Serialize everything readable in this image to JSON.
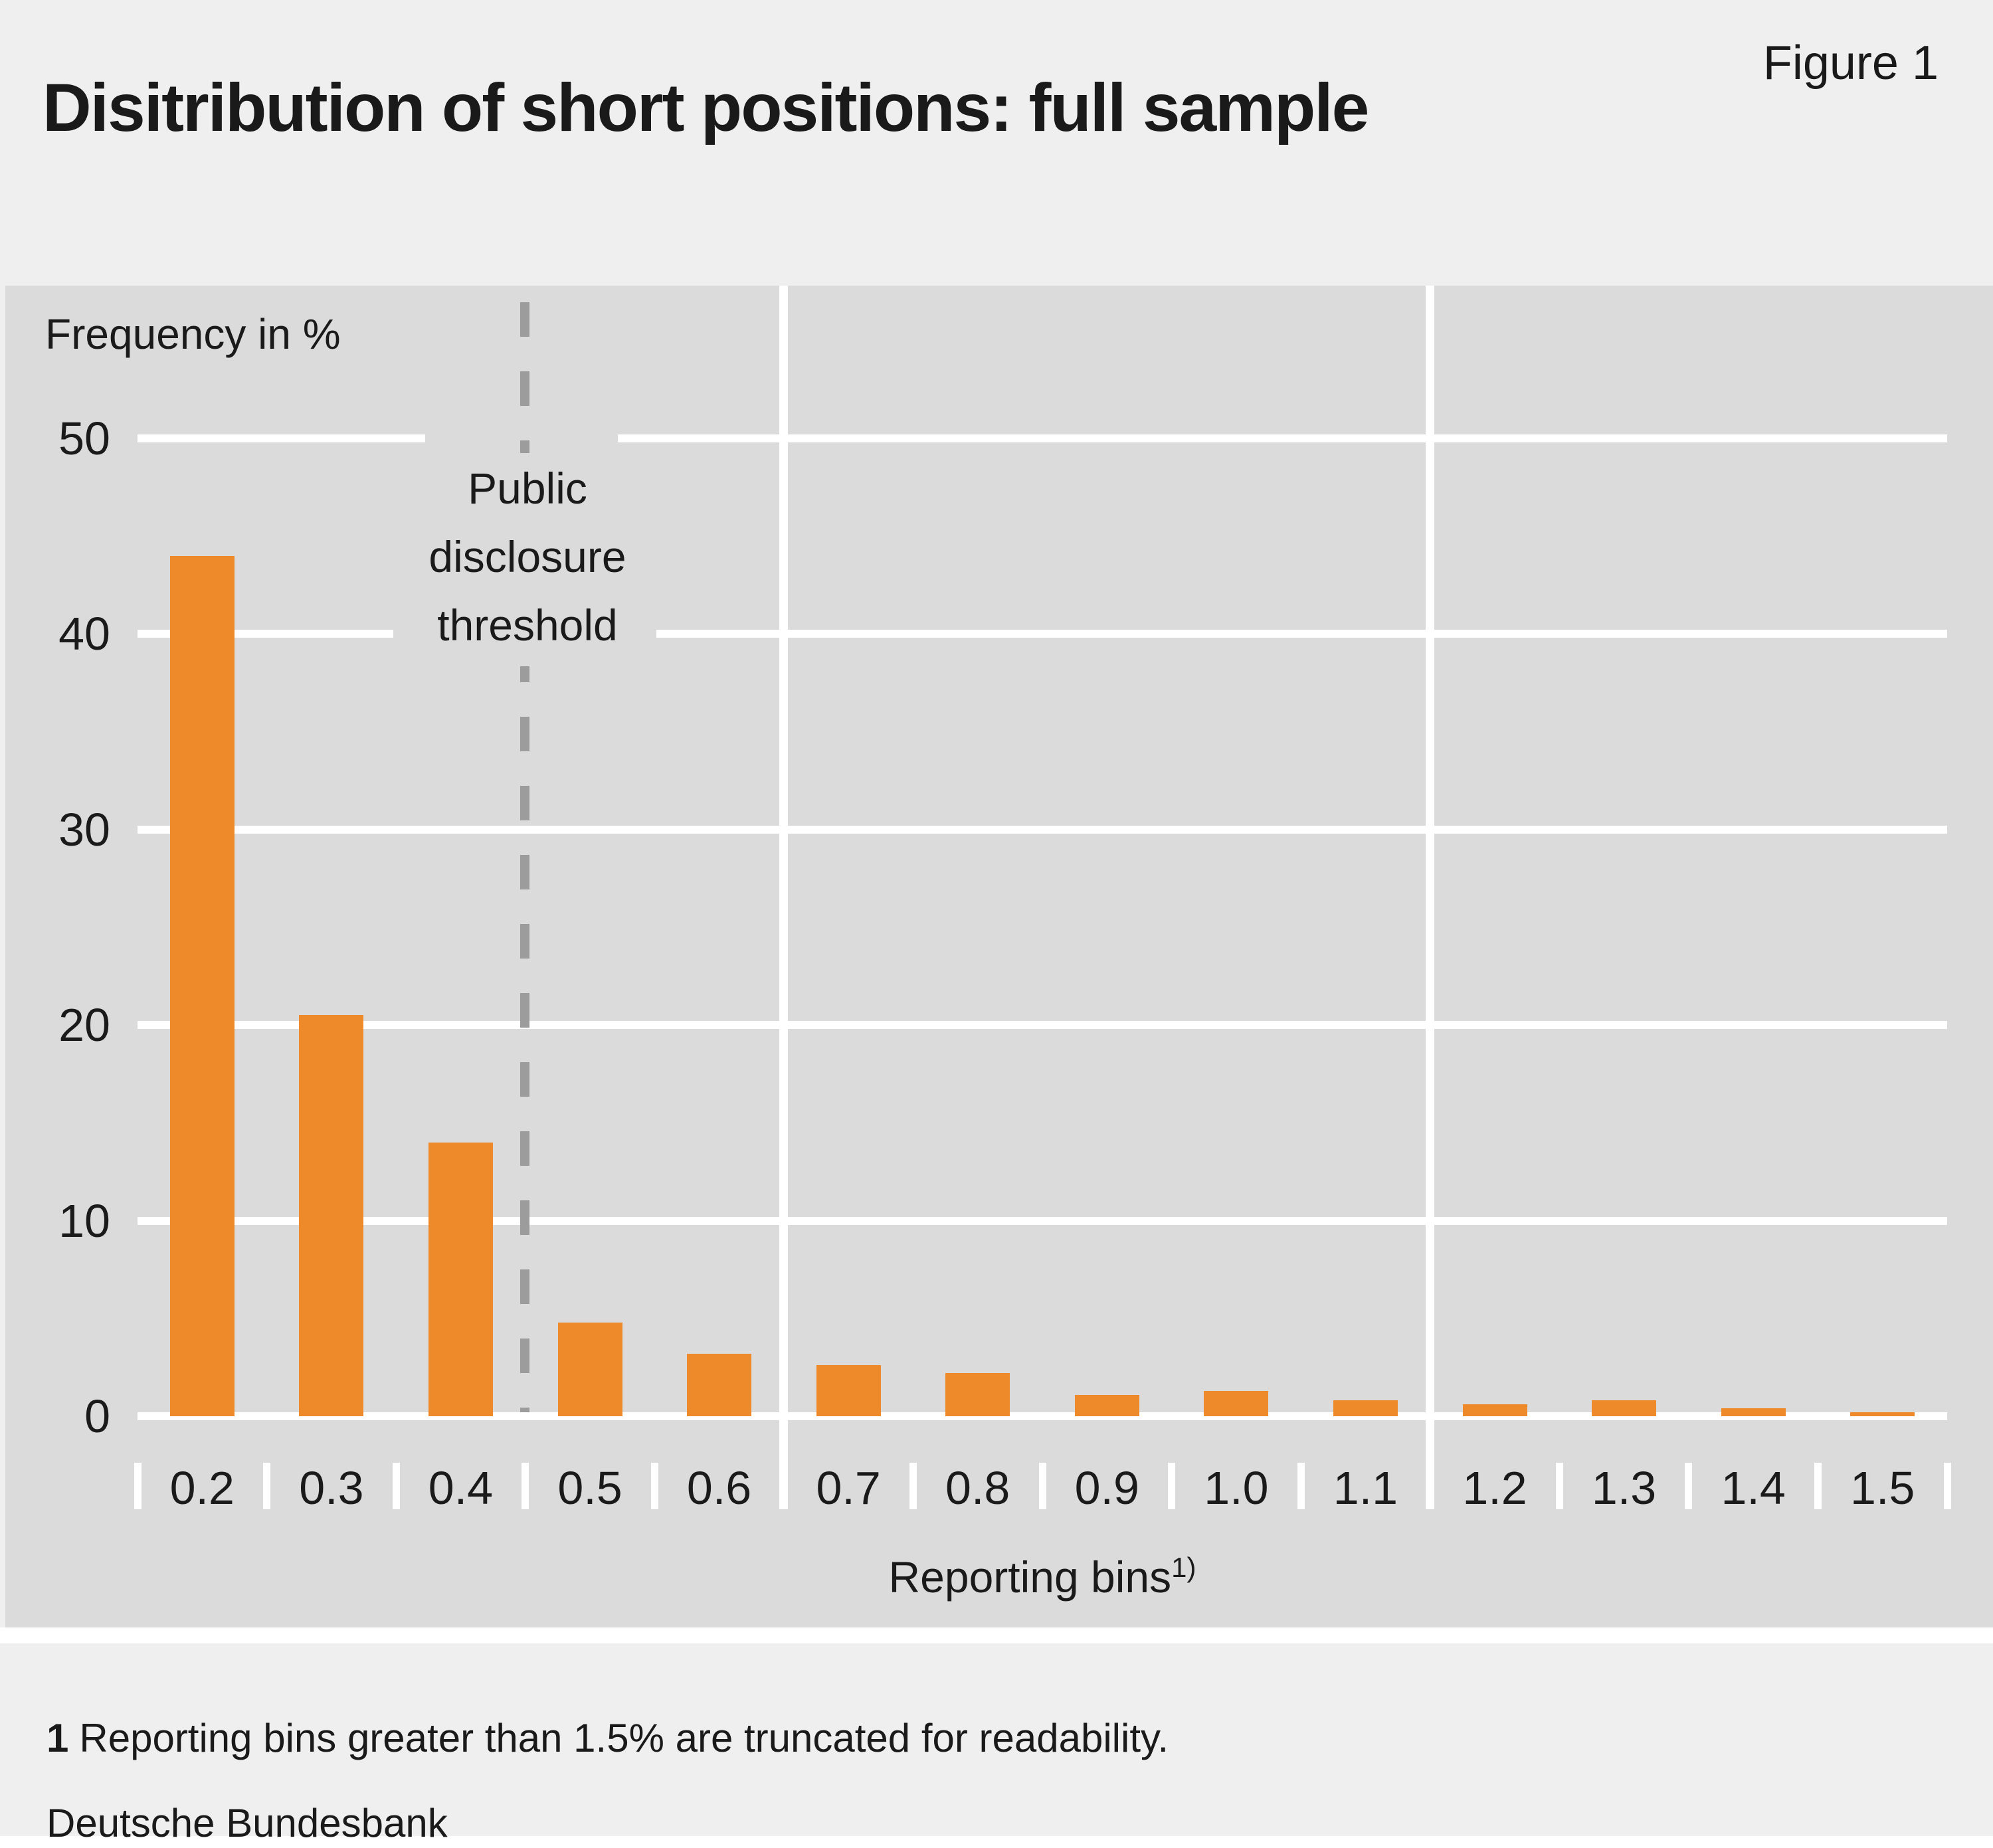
{
  "header": {
    "title": "Disitribution of short positions: full sample",
    "figure_label": "Figure 1"
  },
  "chart_data": {
    "type": "bar",
    "title": "Disitribution of short positions: full sample",
    "categories": [
      "0.2",
      "0.3",
      "0.4",
      "0.5",
      "0.6",
      "0.7",
      "0.8",
      "0.9",
      "1.0",
      "1.1",
      "1.2",
      "1.3",
      "1.4",
      "1.5"
    ],
    "values": [
      44.0,
      20.5,
      14.0,
      4.8,
      3.2,
      2.6,
      2.2,
      1.1,
      1.3,
      0.8,
      0.6,
      0.8,
      0.4,
      0.2
    ],
    "xlabel": "Reporting bins",
    "xlabel_superscript": "1)",
    "ylabel": "Frequency in %",
    "ylim": [
      0,
      50
    ],
    "y_ticks": [
      50,
      40,
      30,
      20,
      10,
      0
    ],
    "grid": "white horizontal gridlines every 10; two white vertical gridlines between bins 0.6/0.7 and 1.1/1.2",
    "legend_position": "none",
    "annotations": [
      {
        "type": "dashed-vertical-line",
        "x_between": [
          "0.4",
          "0.5"
        ],
        "label": "Public disclosure threshold"
      }
    ]
  },
  "threshold": {
    "lines": [
      "Public",
      "disclosure",
      "threshold"
    ]
  },
  "footnote": {
    "marker": "1",
    "text": "Reporting bins greater than 1.5% are truncated for readability."
  },
  "source": "Deutsche Bundesbank",
  "colors": {
    "bar_orange": "#ee8a29",
    "panel_gray": "#dbdbdb",
    "page_gray": "#efefef",
    "gridline_white": "#ffffff",
    "dash_gray": "#9c9c9c",
    "text_black": "#1a1a1a"
  }
}
